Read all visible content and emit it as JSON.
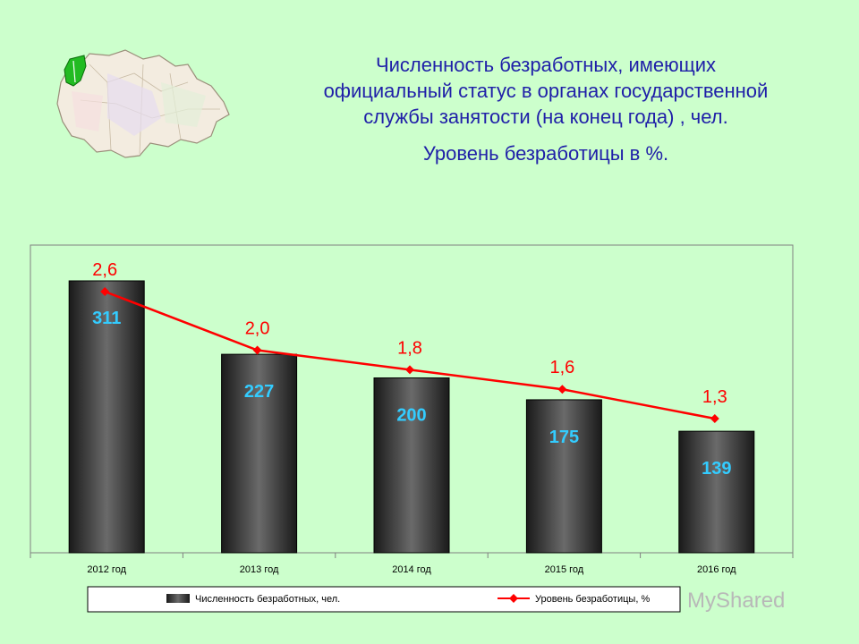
{
  "header": {
    "title_lines": [
      "Численность безработных, имеющих",
      "официальный статус в органах государственной",
      "службы занятости (на конец года) , чел."
    ],
    "subtitle": "Уровень безработицы в %."
  },
  "watermark": "MyShared",
  "chart_data": {
    "type": "bar",
    "categories": [
      "2012 год",
      "2013 год",
      "2014 год",
      "2015 год",
      "2016 год"
    ],
    "series": [
      {
        "name": "Численность безработных, чел.",
        "type": "bar",
        "values": [
          311,
          227,
          200,
          175,
          139
        ],
        "labels": [
          "311",
          "227",
          "200",
          "175",
          "139"
        ],
        "color": "#3a3a3a"
      },
      {
        "name": "Уровень безработицы, %",
        "type": "line",
        "values": [
          2.6,
          2.0,
          1.8,
          1.6,
          1.3
        ],
        "labels": [
          "2,6",
          "2,0",
          "1,8",
          "1,6",
          "1,3"
        ],
        "color": "#ff0000"
      }
    ],
    "bar_label_color": "#33ccff",
    "legend_position": "bottom",
    "grid": false
  }
}
